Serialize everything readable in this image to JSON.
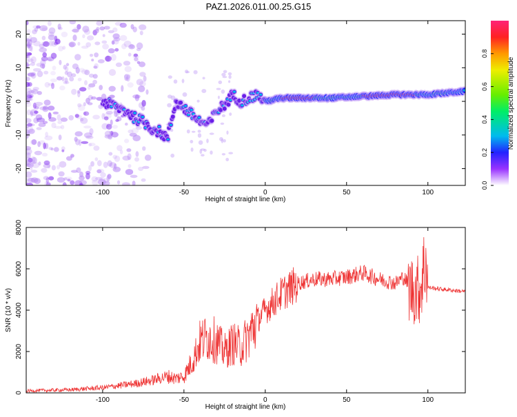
{
  "figure_title": "PAZ1.2026.011.00.25.G15",
  "chart_data": [
    {
      "type": "heatmap",
      "name": "spectrogram",
      "xlabel": "Height of straight line (km)",
      "ylabel": "Frequency (Hz)",
      "xlim": [
        -147,
        123
      ],
      "ylim": [
        -25,
        24
      ],
      "xticks": [
        -100,
        -50,
        0,
        50,
        100
      ],
      "yticks": [
        -20,
        -10,
        0,
        10,
        20
      ],
      "ridge": {
        "x": [
          -100,
          -95,
          -90,
          -85,
          -80,
          -75,
          -70,
          -65,
          -60,
          -55,
          -50,
          -45,
          -40,
          -35,
          -30,
          -25,
          -20,
          -15,
          -10,
          -5,
          0,
          10,
          20,
          40,
          60,
          80,
          100,
          123
        ],
        "y": [
          0,
          -1,
          -2,
          -3,
          -5,
          -6,
          -8,
          -9,
          -11,
          0,
          -2,
          -4,
          -6,
          -7,
          -3,
          -1,
          2,
          0,
          1,
          2,
          0,
          1,
          1,
          1,
          1.5,
          2,
          2,
          3
        ]
      },
      "colorbar": {
        "label": "Normalized spectral amplitude",
        "range": [
          0,
          1
        ],
        "ticks": [
          0.0,
          0.2,
          0.4,
          0.6,
          0.8
        ]
      }
    },
    {
      "type": "line",
      "name": "snr",
      "xlabel": "Height of straight line (km)",
      "ylabel": "SNR (10 * v/v)",
      "xlim": [
        -147,
        123
      ],
      "ylim": [
        0,
        8000
      ],
      "xticks": [
        -100,
        -50,
        0,
        50,
        100
      ],
      "yticks": [
        0,
        2000,
        4000,
        6000,
        8000
      ],
      "color": "#ee3333",
      "series": [
        {
          "name": "SNR",
          "x": [
            -147,
            -120,
            -100,
            -90,
            -80,
            -70,
            -60,
            -55,
            -50,
            -45,
            -40,
            -35,
            -30,
            -25,
            -20,
            -15,
            -10,
            -5,
            0,
            5,
            10,
            20,
            30,
            40,
            50,
            60,
            70,
            80,
            85,
            90,
            95,
            97,
            99,
            100,
            110,
            123
          ],
          "y": [
            100,
            150,
            250,
            350,
            450,
            600,
            800,
            700,
            800,
            1500,
            2500,
            2700,
            2500,
            2000,
            2400,
            2200,
            2800,
            3500,
            4000,
            4400,
            4800,
            5300,
            5500,
            5500,
            5600,
            5800,
            5500,
            5300,
            5600,
            5000,
            5000,
            5800,
            6500,
            5100,
            5000,
            4900
          ]
        }
      ]
    }
  ]
}
